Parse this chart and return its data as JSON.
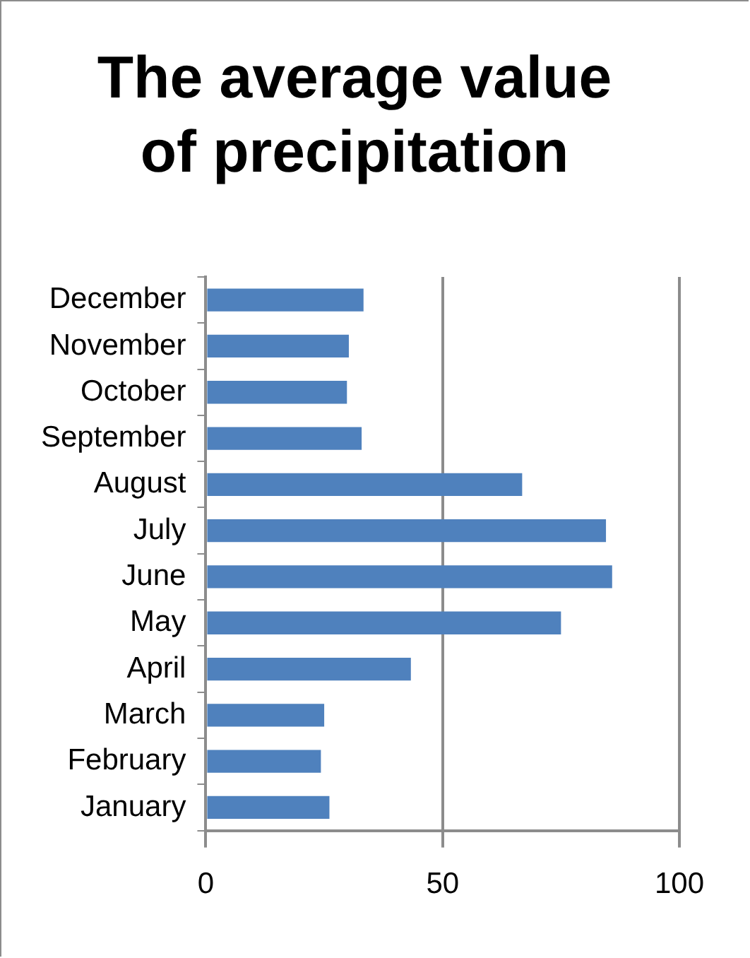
{
  "chart_data": {
    "type": "bar",
    "orientation": "horizontal",
    "title": [
      "The average value",
      "of precipitation"
    ],
    "categories": [
      "December",
      "November",
      "October",
      "September",
      "August",
      "July",
      "June",
      "May",
      "April",
      "March",
      "February",
      "January"
    ],
    "values": [
      33.3,
      30.2,
      29.8,
      32.9,
      66.8,
      84.5,
      85.8,
      75,
      43.3,
      25,
      24.3,
      26.1
    ],
    "color": "#4f81bd",
    "xlim": [
      0,
      100
    ],
    "xticks": [
      0,
      50,
      100
    ],
    "grid": "x"
  }
}
